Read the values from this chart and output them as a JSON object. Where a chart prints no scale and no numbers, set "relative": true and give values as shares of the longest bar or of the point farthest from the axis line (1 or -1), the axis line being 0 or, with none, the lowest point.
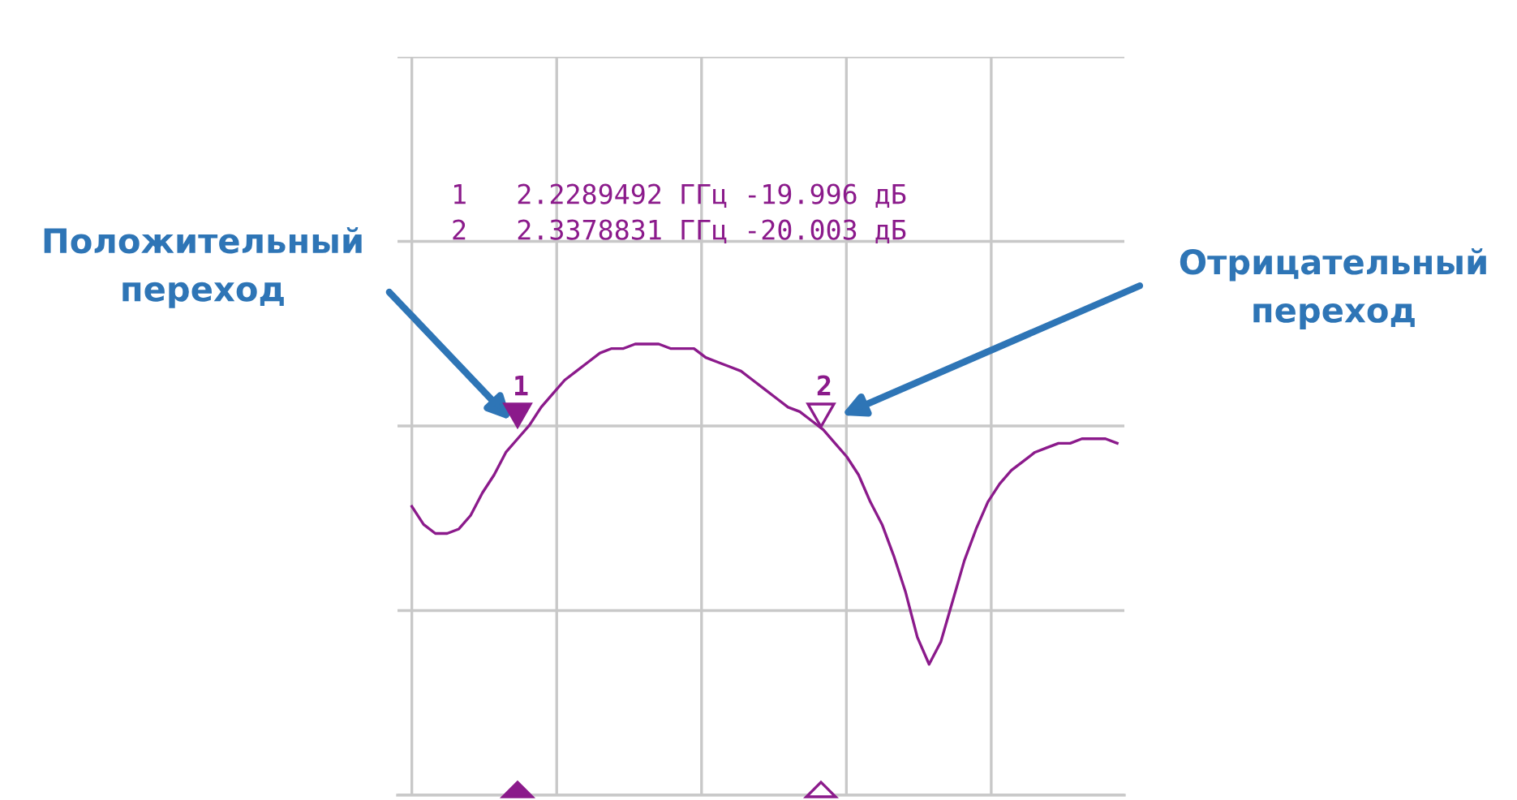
{
  "chart_data": {
    "type": "line",
    "relative": true,
    "grid": true,
    "categories": [
      null,
      null,
      null,
      null,
      null,
      null,
      null,
      null,
      null,
      null,
      null,
      null,
      null,
      null,
      null,
      null,
      null,
      null,
      null,
      null,
      null,
      null,
      null,
      null,
      null,
      null,
      null,
      null,
      null,
      null,
      null,
      null,
      null,
      null,
      null,
      null,
      null,
      null,
      null,
      null,
      null,
      null,
      null,
      null,
      null,
      null,
      null,
      null,
      null,
      null,
      null,
      null,
      null,
      null,
      null,
      null,
      null,
      null,
      null,
      null,
      null
    ],
    "series": [
      {
        "color": "#8b1a8b",
        "values": [
          0.64,
          0.6,
          0.58,
          0.58,
          0.59,
          0.62,
          0.67,
          0.71,
          0.76,
          0.79,
          0.82,
          0.86,
          0.89,
          0.92,
          0.94,
          0.96,
          0.98,
          0.99,
          0.99,
          1,
          1,
          1,
          0.99,
          0.99,
          0.99,
          0.97,
          0.96,
          0.95,
          0.94,
          0.92,
          0.9,
          0.88,
          0.86,
          0.85,
          0.83,
          0.81,
          0.78,
          0.75,
          0.71,
          0.65,
          0.6,
          0.53,
          0.45,
          0.35,
          0.29,
          0.34,
          0.43,
          0.52,
          0.59,
          0.65,
          0.69,
          0.72,
          0.74,
          0.76,
          0.77,
          0.78,
          0.78,
          0.79,
          0.79,
          0.79,
          0.78
        ]
      }
    ],
    "annotations": [
      "1   2.2289492 ГГц -19.996 дБ",
      "2   2.3378831 ГГц -20.003 дБ",
      "1",
      "2",
      "Положительный\nпереход",
      "Отрицательный\nпереход"
    ]
  }
}
